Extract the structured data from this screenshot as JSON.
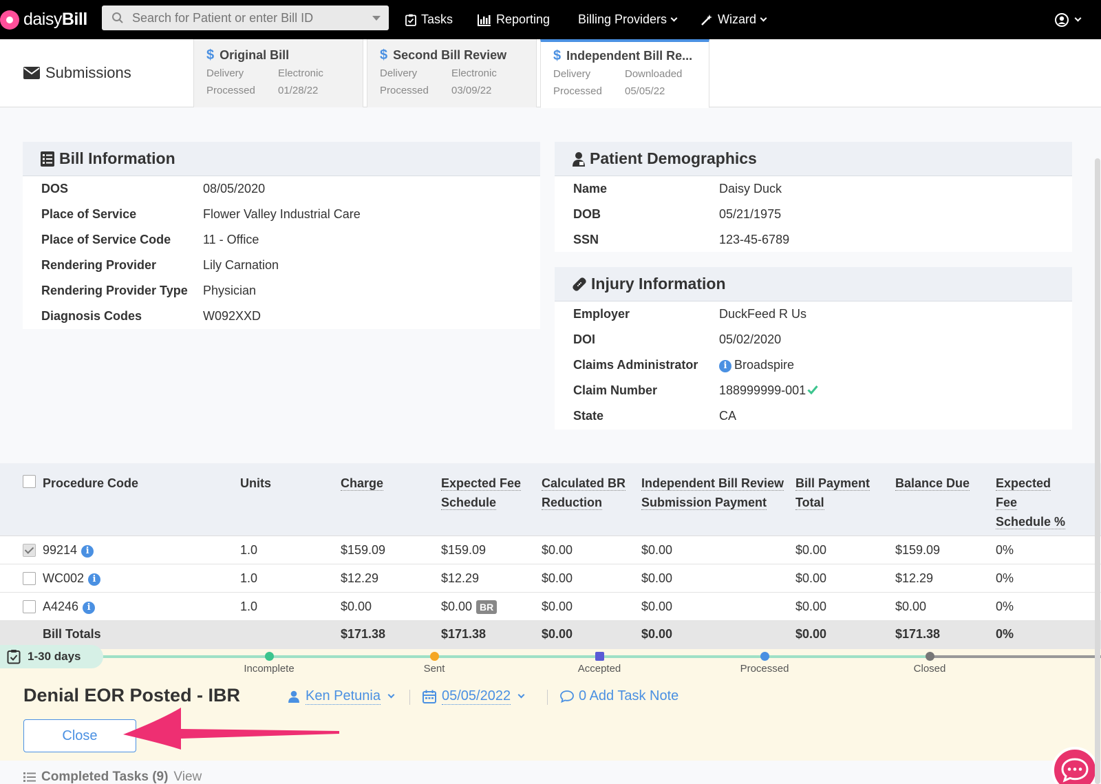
{
  "nav": {
    "brand_light": "daisy",
    "brand_bold": "Bill",
    "search_placeholder": "Search for Patient or enter Bill ID",
    "tasks": "Tasks",
    "reporting": "Reporting",
    "billing_providers": "Billing Providers",
    "wizard": "Wizard"
  },
  "submissions": {
    "title": "Submissions",
    "tabs": [
      {
        "title": "Original Bill",
        "row1_label": "Delivery",
        "row1_value": "Electronic",
        "row2_label": "Processed",
        "row2_value": "01/28/22"
      },
      {
        "title": "Second Bill Review",
        "row1_label": "Delivery",
        "row1_value": "Electronic",
        "row2_label": "Processed",
        "row2_value": "03/09/22"
      },
      {
        "title": "Independent Bill Re...",
        "row1_label": "Delivery",
        "row1_value": "Downloaded",
        "row2_label": "Processed",
        "row2_value": "05/05/22"
      }
    ]
  },
  "bill_info": {
    "title": "Bill Information",
    "rows": [
      {
        "k": "DOS",
        "v": "08/05/2020"
      },
      {
        "k": "Place of Service",
        "v": "Flower Valley Industrial Care"
      },
      {
        "k": "Place of Service Code",
        "v": "11 - Office"
      },
      {
        "k": "Rendering Provider",
        "v": "Lily Carnation"
      },
      {
        "k": "Rendering Provider Type",
        "v": "Physician"
      },
      {
        "k": "Diagnosis Codes",
        "v": "W092XXD"
      }
    ]
  },
  "patient": {
    "title": "Patient Demographics",
    "rows": [
      {
        "k": "Name",
        "v": "Daisy Duck"
      },
      {
        "k": "DOB",
        "v": "05/21/1975"
      },
      {
        "k": "SSN",
        "v": "123-45-6789"
      }
    ]
  },
  "injury": {
    "title": "Injury Information",
    "rows": [
      {
        "k": "Employer",
        "v": "DuckFeed R Us"
      },
      {
        "k": "DOI",
        "v": "05/02/2020"
      },
      {
        "k": "Claims Administrator",
        "v": "Broadspire"
      },
      {
        "k": "Claim Number",
        "v": "188999999-001"
      },
      {
        "k": "State",
        "v": "CA"
      }
    ]
  },
  "table": {
    "headers": {
      "code": "Procedure Code",
      "units": "Units",
      "charge": "Charge",
      "efs_1": "Expected Fee",
      "efs_2": "Schedule",
      "cbr_1": "Calculated BR",
      "cbr_2": "Reduction",
      "ibr_1": "Independent Bill Review",
      "ibr_2": "Submission Payment",
      "bpt_1": "Bill Payment",
      "bpt_2": "Total",
      "balance": "Balance Due",
      "efsp_1": "Expected",
      "efsp_2": "Fee",
      "efsp_3": "Schedule %"
    },
    "rows": [
      {
        "code": "99214",
        "units": "1.0",
        "charge": "$159.09",
        "efs": "$159.09",
        "cbr": "$0.00",
        "ibr": "$0.00",
        "bpt": "$0.00",
        "balance": "$159.09",
        "pct": "0%",
        "checked": true
      },
      {
        "code": "WC002",
        "units": "1.0",
        "charge": "$12.29",
        "efs": "$12.29",
        "cbr": "$0.00",
        "ibr": "$0.00",
        "bpt": "$0.00",
        "balance": "$12.29",
        "pct": "0%",
        "checked": false
      },
      {
        "code": "A4246",
        "units": "1.0",
        "charge": "$0.00",
        "efs": "$0.00",
        "br_badge": "BR",
        "cbr": "$0.00",
        "ibr": "$0.00",
        "bpt": "$0.00",
        "balance": "$0.00",
        "pct": "0%",
        "checked": false
      }
    ],
    "totals": {
      "label": "Bill Totals",
      "charge": "$171.38",
      "efs": "$171.38",
      "cbr": "$0.00",
      "ibr": "$0.00",
      "bpt": "$0.00",
      "balance": "$171.38",
      "pct": "0%"
    }
  },
  "task": {
    "days": "1-30 days",
    "stages": [
      "Incomplete",
      "Sent",
      "Accepted",
      "Processed",
      "Closed"
    ],
    "title": "Denial EOR Posted - IBR",
    "assignee": "Ken Petunia",
    "date": "05/05/2022",
    "note": "0 Add Task Note",
    "close_label": "Close",
    "completed_label": "Completed Tasks (9)",
    "view_label": "View"
  },
  "colors": {
    "accent": "#4a90e2",
    "nav_bg": "#000000",
    "task_bg": "#fdf8e6",
    "arrow": "#ee2f72",
    "check_green": "#3cc48e"
  }
}
